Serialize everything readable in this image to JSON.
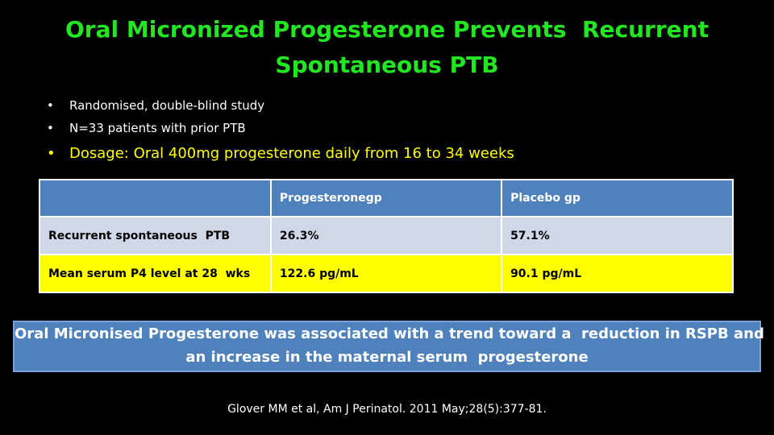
{
  "title_lines": [
    "Oral Micronized Progesterone Prevents  Recurrent",
    "Spontaneous PTB"
  ],
  "bullets": [
    "Randomised, double-blind study",
    "N=33 patients with prior PTB",
    "Dosage: Oral 400mg progesterone daily from 16 to 34 weeks"
  ],
  "table": {
    "columns": [
      "Progesteronegp",
      "Placebo gp"
    ],
    "rows": [
      [
        "Recurrent spontaneous  PTB",
        "26.3%",
        "57.1%"
      ],
      [
        "Mean serum P4 level at 28  wks",
        "122.6 pg/mL",
        "90.1 pg/mL"
      ]
    ]
  },
  "summary_lines": [
    "Oral Micronised Progesterone was associated with a trend toward a  reduction in RSPB and",
    "an increase in the maternal serum  progesterone"
  ],
  "citation": "Glover MM et al, Am J Perinatol. 2011 May;28(5):377-81."
}
